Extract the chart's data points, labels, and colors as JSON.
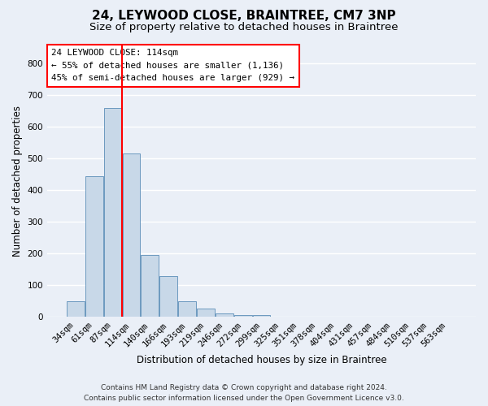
{
  "title": "24, LEYWOOD CLOSE, BRAINTREE, CM7 3NP",
  "subtitle": "Size of property relative to detached houses in Braintree",
  "xlabel": "Distribution of detached houses by size in Braintree",
  "ylabel": "Number of detached properties",
  "footer_line1": "Contains HM Land Registry data © Crown copyright and database right 2024.",
  "footer_line2": "Contains public sector information licensed under the Open Government Licence v3.0.",
  "bin_labels": [
    "34sqm",
    "61sqm",
    "87sqm",
    "114sqm",
    "140sqm",
    "166sqm",
    "193sqm",
    "219sqm",
    "246sqm",
    "272sqm",
    "299sqm",
    "325sqm",
    "351sqm",
    "378sqm",
    "404sqm",
    "431sqm",
    "457sqm",
    "484sqm",
    "510sqm",
    "537sqm",
    "563sqm"
  ],
  "bar_values": [
    50,
    445,
    660,
    515,
    195,
    128,
    50,
    25,
    10,
    5,
    5,
    0,
    0,
    0,
    0,
    0,
    0,
    0,
    0,
    0,
    0
  ],
  "bar_color": "#c8d8e8",
  "bar_edge_color": "#5b8db8",
  "vline_bin_index": 3,
  "vline_color": "red",
  "annotation_text": "24 LEYWOOD CLOSE: 114sqm\n← 55% of detached houses are smaller (1,136)\n45% of semi-detached houses are larger (929) →",
  "annotation_box_color": "white",
  "annotation_box_edge_color": "red",
  "ylim": [
    0,
    860
  ],
  "background_color": "#eaeff7",
  "plot_background_color": "#eaeff7",
  "grid_color": "white",
  "title_fontsize": 11,
  "subtitle_fontsize": 9.5,
  "axis_label_fontsize": 8.5,
  "tick_fontsize": 7.5,
  "ylabel_fontsize": 8.5,
  "footer_fontsize": 6.5
}
